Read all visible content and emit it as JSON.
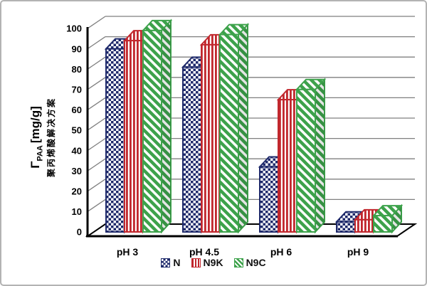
{
  "frame": {
    "background": "#ffffff",
    "border_color": "#b3b3b3"
  },
  "y_axis_title": {
    "gamma": "Γ",
    "sub": "PAA",
    "unit": "[mg/g]",
    "cn": "聚丙烯酸解决方案"
  },
  "chart_data": {
    "type": "bar",
    "style": "3d-column",
    "categories": [
      "pH 3",
      "pH 4.5",
      "pH 6",
      "pH 9"
    ],
    "series": [
      {
        "name": "N",
        "color": "#1f2a6b",
        "pattern": "checker",
        "values": [
          90,
          81,
          32,
          5
        ]
      },
      {
        "name": "N9K",
        "color": "#c1272d",
        "pattern": "vertical-stripes",
        "values": [
          94,
          92,
          65,
          6
        ]
      },
      {
        "name": "N9C",
        "color": "#3da24b",
        "pattern": "diagonal-stripes",
        "values": [
          99,
          97,
          70,
          8
        ]
      }
    ],
    "ylabel": "Γ_PAA [mg/g] 聚丙烯酸解决方案",
    "xlabel": "",
    "ylim": [
      0,
      100
    ],
    "ytick_step": 10,
    "grid": true,
    "gridline_color": "#7f7f7f",
    "axis_color": "#000000",
    "legend_position": "bottom",
    "legend": [
      "N",
      "N9K",
      "N9C"
    ]
  }
}
